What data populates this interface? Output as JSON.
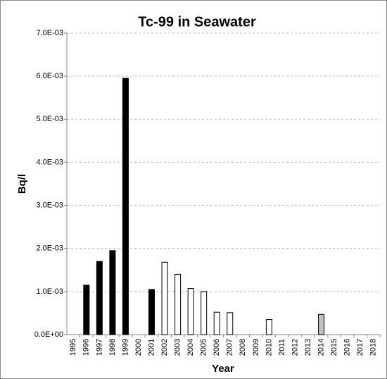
{
  "chart_data": {
    "type": "bar",
    "title": "Tc-99 in Seawater",
    "x_label": "Year",
    "y_label": "Bq/l",
    "categories": [
      "1995",
      "1996",
      "1997",
      "1998",
      "1999",
      "2000",
      "2001",
      "2002",
      "2003",
      "2004",
      "2005",
      "2006",
      "2007",
      "2008",
      "2009",
      "2010",
      "2011",
      "2012",
      "2013",
      "2014",
      "2015",
      "2016",
      "2017",
      "2018"
    ],
    "values": [
      null,
      0.00115,
      0.0017,
      0.00195,
      0.00595,
      null,
      0.00105,
      0.00168,
      0.0014,
      0.00107,
      0.001,
      0.00052,
      0.00051,
      null,
      null,
      0.00035,
      null,
      null,
      null,
      0.00047,
      null,
      null,
      null,
      null
    ],
    "colors": [
      null,
      "#000000",
      "#000000",
      "#000000",
      "#000000",
      null,
      "#000000",
      "#ffffff",
      "#ffffff",
      "#ffffff",
      "#ffffff",
      "#ffffff",
      "#ffffff",
      null,
      null,
      "#ffffff",
      null,
      null,
      null,
      "#bfbfbf",
      null,
      null,
      null,
      null
    ],
    "ylim": [
      0,
      0.007
    ],
    "yticks": [
      {
        "value": 0,
        "label": "0.0E+00"
      },
      {
        "value": 0.001,
        "label": "1.0E-03"
      },
      {
        "value": 0.002,
        "label": "2.0E-03"
      },
      {
        "value": 0.003,
        "label": "3.0E-03"
      },
      {
        "value": 0.004,
        "label": "4.0E-03"
      },
      {
        "value": 0.005,
        "label": "5.0E-03"
      },
      {
        "value": 0.006,
        "label": "6.0E-03"
      },
      {
        "value": 0.007,
        "label": "7.0E-03"
      }
    ],
    "grid": true
  }
}
